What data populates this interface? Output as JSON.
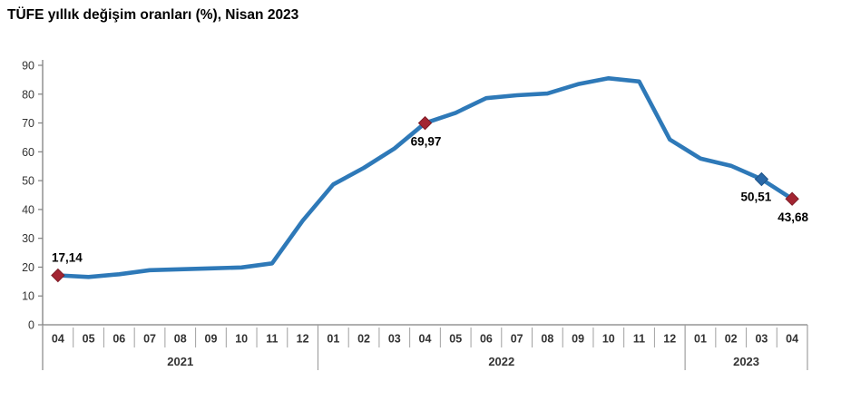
{
  "chart_data": {
    "type": "line",
    "title": "TÜFE yıllık değişim oranları (%), Nisan 2023",
    "categories": [
      "04",
      "05",
      "06",
      "07",
      "08",
      "09",
      "10",
      "11",
      "12",
      "01",
      "02",
      "03",
      "04",
      "05",
      "06",
      "07",
      "08",
      "09",
      "10",
      "11",
      "12",
      "01",
      "02",
      "03",
      "04"
    ],
    "year_groups": [
      {
        "label": "2021",
        "span": 9
      },
      {
        "label": "2022",
        "span": 12
      },
      {
        "label": "2023",
        "span": 4
      }
    ],
    "values": [
      17.14,
      16.59,
      17.53,
      18.95,
      19.25,
      19.58,
      19.89,
      21.31,
      36.08,
      48.69,
      54.44,
      61.14,
      69.97,
      73.5,
      78.62,
      79.6,
      80.21,
      83.45,
      85.51,
      84.39,
      64.27,
      57.68,
      55.18,
      50.51,
      43.68
    ],
    "ylim": [
      0,
      90
    ],
    "yticks": [
      0,
      10,
      20,
      30,
      40,
      50,
      60,
      70,
      80,
      90
    ],
    "grid": false,
    "legend": "none",
    "annotations": [
      {
        "category_index": 0,
        "year": "2021",
        "month": "04",
        "value": 17.14,
        "label": "17,14",
        "marker_color": "#a32532",
        "marker_border": "#7e1c26",
        "label_position": "above-right"
      },
      {
        "category_index": 12,
        "year": "2022",
        "month": "04",
        "value": 69.97,
        "label": "69,97",
        "marker_color": "#a32532",
        "marker_border": "#7e1c26",
        "label_position": "below"
      },
      {
        "category_index": 23,
        "year": "2023",
        "month": "03",
        "value": 50.51,
        "label": "50,51",
        "marker_color": "#2a68a7",
        "marker_border": "#1f5488",
        "label_position": "below-left"
      },
      {
        "category_index": 24,
        "year": "2023",
        "month": "04",
        "value": 43.68,
        "label": "43,68",
        "marker_color": "#a32532",
        "marker_border": "#7e1c26",
        "label_position": "below"
      }
    ],
    "colors": {
      "line": "#2e79b8",
      "axis": "#808080",
      "separator": "#a0a0a0",
      "tick_label": "#333333",
      "data_label": "#000000"
    }
  }
}
